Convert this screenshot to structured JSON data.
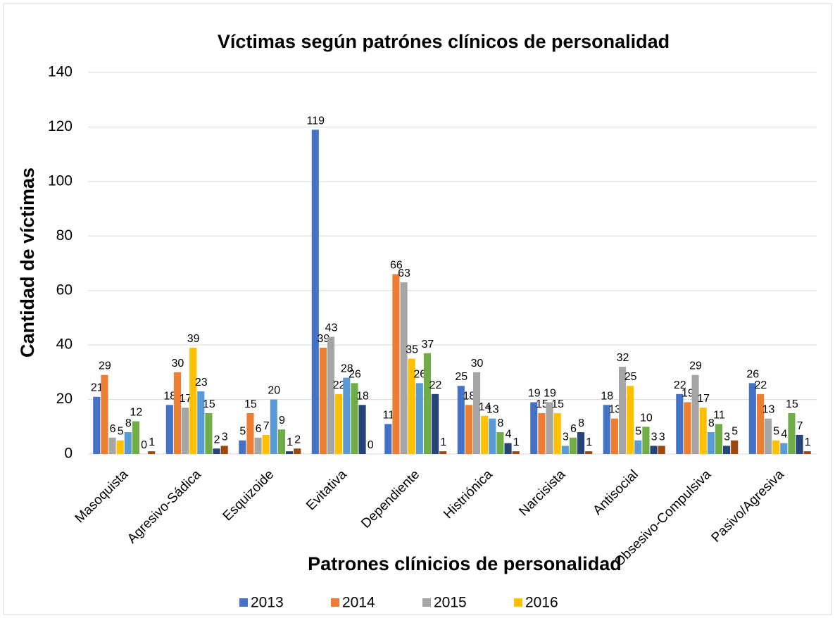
{
  "chart_data": {
    "type": "bar",
    "title": "Víctimas según patrónes clínicos de personalidad",
    "x_label": "Patrones clínicios de personalidad",
    "y_label": "Cantidad de víctimas",
    "categories": [
      "Masoquista",
      "Agresivo-Sádica",
      "Esquizoide",
      "Evitativa",
      "Dependiente",
      "Histriónica",
      "Narcisista",
      "Antisocial",
      "Obsesivo-Compulsiva",
      "Pasivo/Agresiva"
    ],
    "series": [
      {
        "name": "2013",
        "color": "#4472c4",
        "values": [
          21,
          18,
          5,
          119,
          11,
          25,
          19,
          18,
          22,
          26
        ]
      },
      {
        "name": "2014",
        "color": "#ed7d31",
        "values": [
          29,
          30,
          15,
          39,
          66,
          18,
          15,
          13,
          19,
          22
        ]
      },
      {
        "name": "2015",
        "color": "#a5a5a5",
        "values": [
          6,
          17,
          6,
          43,
          63,
          30,
          19,
          32,
          29,
          13
        ]
      },
      {
        "name": "2016",
        "color": "#ffc000",
        "values": [
          5,
          39,
          7,
          22,
          35,
          14,
          15,
          25,
          17,
          5
        ]
      },
      {
        "color": "#5b9bd5",
        "values": [
          8,
          23,
          20,
          28,
          26,
          13,
          3,
          5,
          8,
          4
        ]
      },
      {
        "color": "#70ad47",
        "values": [
          12,
          15,
          9,
          26,
          37,
          8,
          6,
          10,
          11,
          15
        ]
      },
      {
        "color": "#264478",
        "values": [
          0,
          2,
          1,
          18,
          22,
          4,
          8,
          3,
          3,
          7
        ]
      },
      {
        "color": "#9e480e",
        "values": [
          1,
          3,
          2,
          0,
          1,
          1,
          1,
          3,
          5,
          1
        ]
      }
    ],
    "ylim": [
      0,
      140
    ],
    "yticks": [
      0,
      20,
      40,
      60,
      80,
      100,
      120,
      140
    ],
    "grid": true
  }
}
